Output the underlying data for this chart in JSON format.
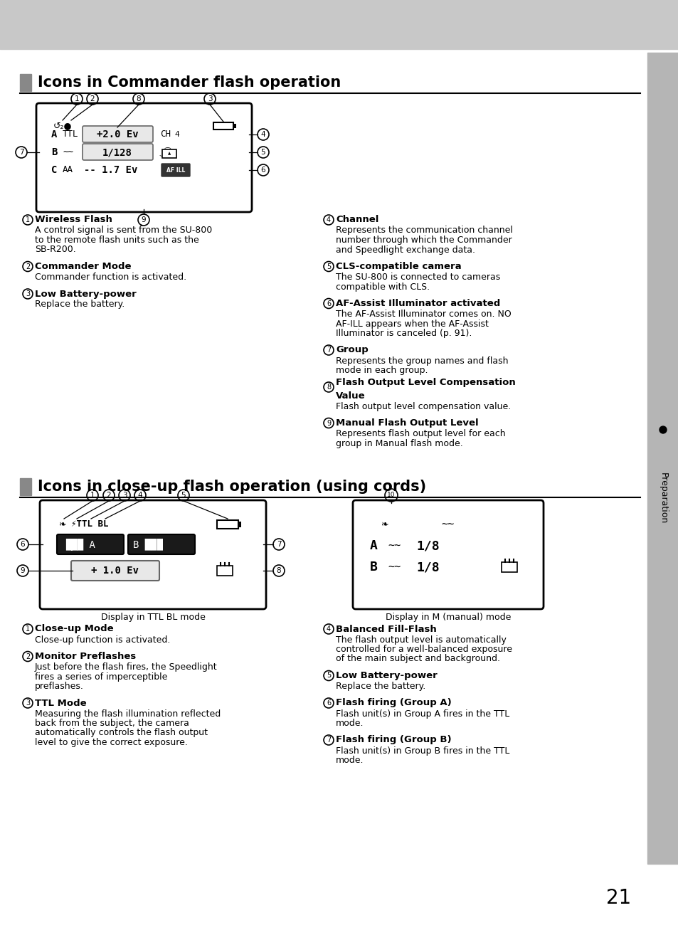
{
  "page_bg": "#ffffff",
  "header_bg": "#c8c8c8",
  "sidebar_bg": "#b5b5b5",
  "section1_title": "Icons in Commander flash operation",
  "section2_title": "Icons in close-up flash operation (using cords)",
  "page_number": "21",
  "sidebar_text": "Preparation",
  "commander_items_left": [
    [
      "1",
      "Wireless Flash",
      "A control signal is sent from the SU-800\nto the remote flash units such as the\nSB-R200."
    ],
    [
      "2",
      "Commander Mode",
      "Commander function is activated."
    ],
    [
      "3",
      "Low Battery-power",
      "Replace the battery."
    ]
  ],
  "commander_items_right": [
    [
      "4",
      "Channel",
      "Represents the communication channel\nnumber through which the Commander\nand Speedlight exchange data."
    ],
    [
      "5",
      "CLS-compatible camera",
      "The SU-800 is connected to cameras\ncompatible with CLS."
    ],
    [
      "6",
      "AF-Assist Illuminator activated",
      "The AF-Assist Illuminator comes on. NO\nAF-ILL appears when the AF-Assist\nIlluminator is canceled (p. 91)."
    ],
    [
      "7",
      "Group",
      "Represents the group names and flash\nmode in each group."
    ],
    [
      "8",
      "Flash Output Level Compensation\nValue",
      "Flash output level compensation value."
    ],
    [
      "9",
      "Manual Flash Output Level",
      "Represents flash output level for each\ngroup in Manual flash mode."
    ]
  ],
  "closeup_items_left": [
    [
      "1",
      "Close-up Mode",
      "Close-up function is activated."
    ],
    [
      "2",
      "Monitor Preflashes",
      "Just before the flash fires, the Speedlight\nfires a series of imperceptible\npreflashes."
    ],
    [
      "3",
      "TTL Mode",
      "Measuring the flash illumination reflected\nback from the subject, the camera\nautomatically controls the flash output\nlevel to give the correct exposure."
    ]
  ],
  "closeup_items_right": [
    [
      "4",
      "Balanced Fill-Flash",
      "The flash output level is automatically\ncontrolled for a well-balanced exposure\nof the main subject and background."
    ],
    [
      "5",
      "Low Battery-power",
      "Replace the battery."
    ],
    [
      "6",
      "Flash firing (Group A)",
      "Flash unit(s) in Group A fires in the TTL\nmode."
    ],
    [
      "7",
      "Flash firing (Group B)",
      "Flash unit(s) in Group B fires in the TTL\nmode."
    ]
  ]
}
